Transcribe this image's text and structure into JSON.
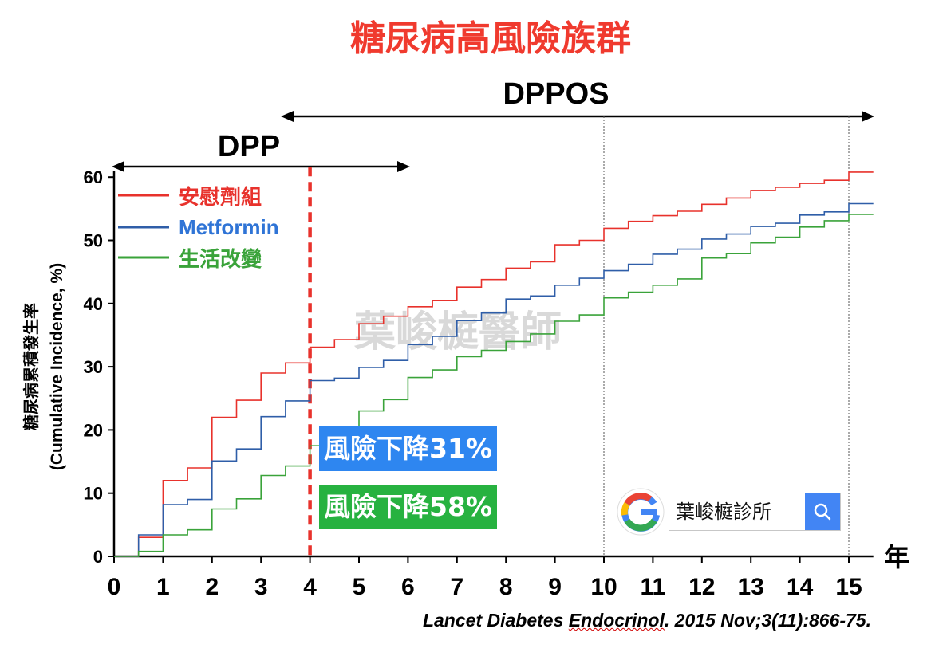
{
  "title": "糖尿病高風險族群",
  "spans": {
    "dpp": "DPP",
    "dppos": "DPPOS"
  },
  "watermark": "葉峻榳醫師",
  "reference": {
    "pre": "Lancet Diabetes ",
    "journal_word": "Endocrinol",
    "post": ". 2015 Nov;3(11):866-75."
  },
  "badges": {
    "metformin": {
      "text": "風險下降31%",
      "color": "#2e86f0"
    },
    "lifestyle": {
      "text": "風險下降58%",
      "color": "#27b240"
    }
  },
  "search": {
    "text": "葉峻榳診所"
  },
  "chart_data": {
    "type": "line",
    "step": true,
    "xlabel": "年",
    "ylabel_line1": "糖尿病累積發生率",
    "ylabel_line2": "(Cumulative Incidence, %)",
    "xlim": [
      0,
      15.5
    ],
    "ylim": [
      0,
      60
    ],
    "xticks": [
      0,
      1,
      2,
      3,
      4,
      5,
      6,
      7,
      8,
      9,
      10,
      11,
      12,
      13,
      14,
      15
    ],
    "yticks": [
      0,
      10,
      20,
      30,
      40,
      50,
      60
    ],
    "reference_lines": [
      {
        "x": 4,
        "style": "dashed",
        "color": "#e8322c"
      },
      {
        "x": 10,
        "style": "dotted",
        "color": "#555555"
      },
      {
        "x": 15,
        "style": "dotted",
        "color": "#555555"
      }
    ],
    "series": [
      {
        "name": "安慰劑組",
        "color": "#e8322c",
        "points": [
          [
            0,
            0
          ],
          [
            0.5,
            0
          ],
          [
            0.5,
            3
          ],
          [
            1,
            3
          ],
          [
            1,
            12
          ],
          [
            1.5,
            12
          ],
          [
            1.5,
            14
          ],
          [
            2,
            14
          ],
          [
            2,
            22
          ],
          [
            2.5,
            22
          ],
          [
            2.5,
            24.7
          ],
          [
            3,
            24.7
          ],
          [
            3,
            29
          ],
          [
            3.5,
            29
          ],
          [
            3.5,
            30.6
          ],
          [
            4,
            30.6
          ],
          [
            4,
            33.1
          ],
          [
            4.5,
            33.1
          ],
          [
            4.5,
            34.3
          ],
          [
            5,
            34.3
          ],
          [
            5,
            36.8
          ],
          [
            5.5,
            36.8
          ],
          [
            5.5,
            38
          ],
          [
            6,
            38
          ],
          [
            6,
            39.5
          ],
          [
            6.5,
            39.5
          ],
          [
            6.5,
            40.5
          ],
          [
            7,
            40.5
          ],
          [
            7,
            42.6
          ],
          [
            7.5,
            42.6
          ],
          [
            7.5,
            43.8
          ],
          [
            8,
            43.8
          ],
          [
            8,
            45.6
          ],
          [
            8.5,
            45.6
          ],
          [
            8.5,
            46.6
          ],
          [
            9,
            46.6
          ],
          [
            9,
            49.3
          ],
          [
            9.5,
            49.3
          ],
          [
            9.5,
            50
          ],
          [
            10,
            50
          ],
          [
            10,
            51.9
          ],
          [
            10.5,
            51.9
          ],
          [
            10.5,
            53
          ],
          [
            11,
            53
          ],
          [
            11,
            53.9
          ],
          [
            11.5,
            53.9
          ],
          [
            11.5,
            54.6
          ],
          [
            12,
            54.6
          ],
          [
            12,
            55.7
          ],
          [
            12.5,
            55.7
          ],
          [
            12.5,
            56.7
          ],
          [
            13,
            56.7
          ],
          [
            13,
            57.9
          ],
          [
            13.5,
            57.9
          ],
          [
            13.5,
            58.4
          ],
          [
            14,
            58.4
          ],
          [
            14,
            59
          ],
          [
            14.5,
            59
          ],
          [
            14.5,
            59.5
          ],
          [
            15,
            59.5
          ],
          [
            15,
            60.8
          ],
          [
            15.5,
            60.8
          ]
        ]
      },
      {
        "name": "Metformin",
        "color": "#2f5ea8",
        "points": [
          [
            0,
            0
          ],
          [
            0.5,
            0
          ],
          [
            0.5,
            3.4
          ],
          [
            1,
            3.4
          ],
          [
            1,
            8.2
          ],
          [
            1.5,
            8.2
          ],
          [
            1.5,
            9
          ],
          [
            2,
            9
          ],
          [
            2,
            15.1
          ],
          [
            2.5,
            15.1
          ],
          [
            2.5,
            17
          ],
          [
            3,
            17
          ],
          [
            3,
            22.1
          ],
          [
            3.5,
            22.1
          ],
          [
            3.5,
            24.6
          ],
          [
            4,
            24.6
          ],
          [
            4,
            27.8
          ],
          [
            4.5,
            27.8
          ],
          [
            4.5,
            28.2
          ],
          [
            5,
            28.2
          ],
          [
            5,
            29.9
          ],
          [
            5.5,
            29.9
          ],
          [
            5.5,
            31
          ],
          [
            6,
            31
          ],
          [
            6,
            33.5
          ],
          [
            6.5,
            33.5
          ],
          [
            6.5,
            34.8
          ],
          [
            7,
            34.8
          ],
          [
            7,
            37.3
          ],
          [
            7.5,
            37.3
          ],
          [
            7.5,
            38.5
          ],
          [
            8,
            38.5
          ],
          [
            8,
            40.7
          ],
          [
            8.5,
            40.7
          ],
          [
            8.5,
            41.2
          ],
          [
            9,
            41.2
          ],
          [
            9,
            42.9
          ],
          [
            9.5,
            42.9
          ],
          [
            9.5,
            44
          ],
          [
            10,
            44
          ],
          [
            10,
            45.2
          ],
          [
            10.5,
            45.2
          ],
          [
            10.5,
            46.2
          ],
          [
            11,
            46.2
          ],
          [
            11,
            47.8
          ],
          [
            11.5,
            47.8
          ],
          [
            11.5,
            48.6
          ],
          [
            12,
            48.6
          ],
          [
            12,
            50.2
          ],
          [
            12.5,
            50.2
          ],
          [
            12.5,
            51
          ],
          [
            13,
            51
          ],
          [
            13,
            52.2
          ],
          [
            13.5,
            52.2
          ],
          [
            13.5,
            52.7
          ],
          [
            14,
            52.7
          ],
          [
            14,
            54
          ],
          [
            14.5,
            54
          ],
          [
            14.5,
            54.5
          ],
          [
            15,
            54.5
          ],
          [
            15,
            55.8
          ],
          [
            15.5,
            55.8
          ]
        ]
      },
      {
        "name": "生活改變",
        "color": "#3aa33a",
        "points": [
          [
            0,
            0
          ],
          [
            0.5,
            0
          ],
          [
            0.5,
            0.8
          ],
          [
            1,
            0.8
          ],
          [
            1,
            3.4
          ],
          [
            1.5,
            3.4
          ],
          [
            1.5,
            4.2
          ],
          [
            2,
            4.2
          ],
          [
            2,
            7.5
          ],
          [
            2.5,
            7.5
          ],
          [
            2.5,
            9.1
          ],
          [
            3,
            9.1
          ],
          [
            3,
            12.8
          ],
          [
            3.5,
            12.8
          ],
          [
            3.5,
            14.3
          ],
          [
            4,
            14.3
          ],
          [
            4,
            17.5
          ],
          [
            4.5,
            17.5
          ],
          [
            4.5,
            18.5
          ],
          [
            5,
            18.5
          ],
          [
            5,
            23
          ],
          [
            5.5,
            23
          ],
          [
            5.5,
            24.8
          ],
          [
            6,
            24.8
          ],
          [
            6,
            28.3
          ],
          [
            6.5,
            28.3
          ],
          [
            6.5,
            29.5
          ],
          [
            7,
            29.5
          ],
          [
            7,
            31.6
          ],
          [
            7.5,
            31.6
          ],
          [
            7.5,
            32.6
          ],
          [
            8,
            32.6
          ],
          [
            8,
            34
          ],
          [
            8.5,
            34
          ],
          [
            8.5,
            35.2
          ],
          [
            9,
            35.2
          ],
          [
            9,
            37.2
          ],
          [
            9.5,
            37.2
          ],
          [
            9.5,
            38.2
          ],
          [
            10,
            38.2
          ],
          [
            10,
            40.9
          ],
          [
            10.5,
            40.9
          ],
          [
            10.5,
            41.8
          ],
          [
            11,
            41.8
          ],
          [
            11,
            42.9
          ],
          [
            11.5,
            42.9
          ],
          [
            11.5,
            43.9
          ],
          [
            12,
            43.9
          ],
          [
            12,
            47.2
          ],
          [
            12.5,
            47.2
          ],
          [
            12.5,
            47.9
          ],
          [
            13,
            47.9
          ],
          [
            13,
            49.6
          ],
          [
            13.5,
            49.6
          ],
          [
            13.5,
            50.5
          ],
          [
            14,
            50.5
          ],
          [
            14,
            52.1
          ],
          [
            14.5,
            52.1
          ],
          [
            14.5,
            53.1
          ],
          [
            15,
            53.1
          ],
          [
            15,
            54.1
          ],
          [
            15.5,
            54.1
          ]
        ]
      }
    ]
  }
}
